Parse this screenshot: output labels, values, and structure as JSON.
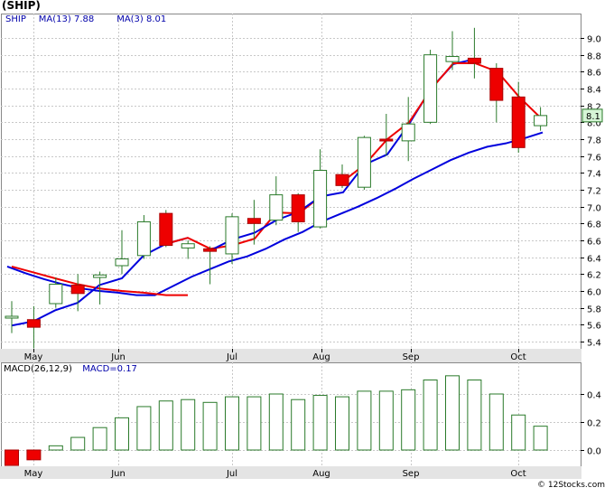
{
  "title": "(SHIP)",
  "watermark": "© 12Stocks.com",
  "chart_data": [
    {
      "type": "candlestick",
      "ticker_label": "SHIP",
      "legend": [
        {
          "label": "SHIP",
          "color": "#0000aa"
        },
        {
          "label": "MA(13)",
          "value": "7.88",
          "color": "#0000dd"
        },
        {
          "label": "MA(3)",
          "value": "8.01",
          "color": "#ee0000"
        }
      ],
      "last_price_label": "8.1",
      "months": [
        "May",
        "Jun",
        "Jul",
        "Aug",
        "Sep",
        "Oct"
      ],
      "ylim": [
        5.2,
        9.2
      ],
      "yticks": [
        5.4,
        5.6,
        5.8,
        6.0,
        6.2,
        6.4,
        6.6,
        6.8,
        7.0,
        7.2,
        7.4,
        7.6,
        7.8,
        8.0,
        8.2,
        8.4,
        8.6,
        8.8,
        9.0
      ],
      "ytick_labels": [
        "5.4",
        "5.6",
        "5.8",
        "6.0",
        "6.2",
        "6.4",
        "6.6",
        "6.8",
        "7.0",
        "7.2",
        "7.4",
        "7.6",
        "7.8",
        "8.0",
        "8.2",
        "8.4",
        "8.6",
        "8.8",
        "9.0"
      ],
      "candles": [
        {
          "o": 5.68,
          "h": 5.88,
          "l": 5.5,
          "c": 5.7
        },
        {
          "o": 5.66,
          "h": 5.82,
          "l": 5.32,
          "c": 5.57
        },
        {
          "o": 5.85,
          "h": 6.16,
          "l": 5.8,
          "c": 6.08
        },
        {
          "o": 6.07,
          "h": 6.2,
          "l": 5.76,
          "c": 5.97
        },
        {
          "o": 6.16,
          "h": 6.23,
          "l": 5.84,
          "c": 6.19
        },
        {
          "o": 6.3,
          "h": 6.72,
          "l": 6.2,
          "c": 6.38
        },
        {
          "o": 6.42,
          "h": 6.9,
          "l": 6.38,
          "c": 6.82
        },
        {
          "o": 6.92,
          "h": 6.96,
          "l": 6.52,
          "c": 6.54
        },
        {
          "o": 6.51,
          "h": 6.6,
          "l": 6.38,
          "c": 6.56
        },
        {
          "o": 6.5,
          "h": 6.53,
          "l": 6.08,
          "c": 6.47
        },
        {
          "o": 6.44,
          "h": 6.92,
          "l": 6.32,
          "c": 6.88
        },
        {
          "o": 6.86,
          "h": 7.08,
          "l": 6.55,
          "c": 6.8
        },
        {
          "o": 6.84,
          "h": 7.36,
          "l": 6.78,
          "c": 7.14
        },
        {
          "o": 7.14,
          "h": 7.16,
          "l": 6.7,
          "c": 6.82
        },
        {
          "o": 6.76,
          "h": 7.68,
          "l": 6.74,
          "c": 7.43
        },
        {
          "o": 7.38,
          "h": 7.5,
          "l": 7.22,
          "c": 7.25
        },
        {
          "o": 7.23,
          "h": 7.84,
          "l": 7.2,
          "c": 7.82
        },
        {
          "o": 7.8,
          "h": 8.1,
          "l": 7.6,
          "c": 7.78
        },
        {
          "o": 7.78,
          "h": 8.3,
          "l": 7.54,
          "c": 7.98
        },
        {
          "o": 8.0,
          "h": 8.86,
          "l": 7.98,
          "c": 8.8
        },
        {
          "o": 8.72,
          "h": 9.08,
          "l": 8.62,
          "c": 8.78
        },
        {
          "o": 8.76,
          "h": 9.12,
          "l": 8.52,
          "c": 8.7
        },
        {
          "o": 8.64,
          "h": 8.7,
          "l": 8.0,
          "c": 8.26
        },
        {
          "o": 8.3,
          "h": 8.48,
          "l": 7.64,
          "c": 7.7
        },
        {
          "o": 7.96,
          "h": 8.18,
          "l": 7.9,
          "c": 8.08
        }
      ],
      "ma13": [
        5.59,
        5.65,
        5.77,
        5.86,
        6.07,
        6.42,
        6.54,
        6.63,
        6.48,
        6.61,
        6.69,
        6.84,
        6.94,
        7.12,
        7.17,
        7.5,
        7.62,
        7.98,
        8.41,
        8.69,
        8.75,
        8.68,
        8.3,
        7.82
      ],
      "ma3": [
        6.29,
        6.21,
        6.14,
        6.08,
        6.03,
        6.0,
        5.98,
        5.95,
        5.95,
        6.06,
        6.17,
        6.26,
        6.35,
        6.41,
        6.5,
        6.61,
        6.7,
        6.82,
        6.91,
        7.0,
        7.1,
        7.21,
        7.33,
        7.44,
        7.55,
        7.64,
        7.71,
        7.75,
        7.81,
        7.88
      ],
      "ma3_points": [
        [
          0,
          6.29
        ],
        [
          1,
          6.21
        ],
        [
          2,
          6.14
        ],
        [
          3,
          6.08
        ],
        [
          4,
          6.03
        ],
        [
          5,
          6.0
        ],
        [
          6,
          5.98
        ],
        [
          7,
          5.95
        ],
        [
          8,
          5.95
        ],
        [
          9,
          6.06
        ],
        [
          10,
          6.17
        ],
        [
          11,
          6.26
        ],
        [
          12,
          6.35
        ],
        [
          13,
          6.41
        ],
        [
          14,
          6.5
        ],
        [
          15,
          6.61
        ],
        [
          16,
          6.7
        ],
        [
          17,
          6.82
        ],
        [
          18,
          6.91
        ],
        [
          19,
          7.0
        ],
        [
          20,
          7.1
        ],
        [
          21,
          7.21
        ],
        [
          22,
          7.33
        ],
        [
          23,
          7.44
        ],
        [
          24,
          7.55
        ],
        [
          25,
          7.64
        ],
        [
          26,
          7.71
        ],
        [
          27,
          7.75
        ],
        [
          28,
          7.81
        ],
        [
          29,
          7.88
        ]
      ],
      "red_ma": [
        null,
        null,
        null,
        null,
        null,
        null,
        6.42,
        6.56,
        6.63,
        6.52,
        6.54,
        6.62,
        6.9,
        6.9,
        7.1,
        7.17,
        7.5,
        7.62,
        8.0,
        8.38,
        8.68,
        8.75,
        8.6,
        8.3,
        8.04
      ]
    },
    {
      "type": "bar",
      "legend": [
        {
          "label": "MACD(26,12,9)",
          "color": "#000000"
        },
        {
          "label": "MACD=0.17",
          "color": "#0000dd"
        }
      ],
      "months": [
        "May",
        "Jun",
        "Jul",
        "Aug",
        "Sep",
        "Oct"
      ],
      "ylim": [
        -0.2,
        0.6
      ],
      "yticks": [
        0.0,
        0.2,
        0.4
      ],
      "ytick_labels": [
        "0.0",
        "0.2",
        "0.4"
      ],
      "values": [
        -0.11,
        -0.07,
        0.03,
        0.09,
        0.16,
        0.23,
        0.31,
        0.35,
        0.36,
        0.34,
        0.38,
        0.38,
        0.4,
        0.36,
        0.39,
        0.38,
        0.42,
        0.42,
        0.43,
        0.5,
        0.53,
        0.5,
        0.4,
        0.25,
        0.17
      ]
    }
  ]
}
